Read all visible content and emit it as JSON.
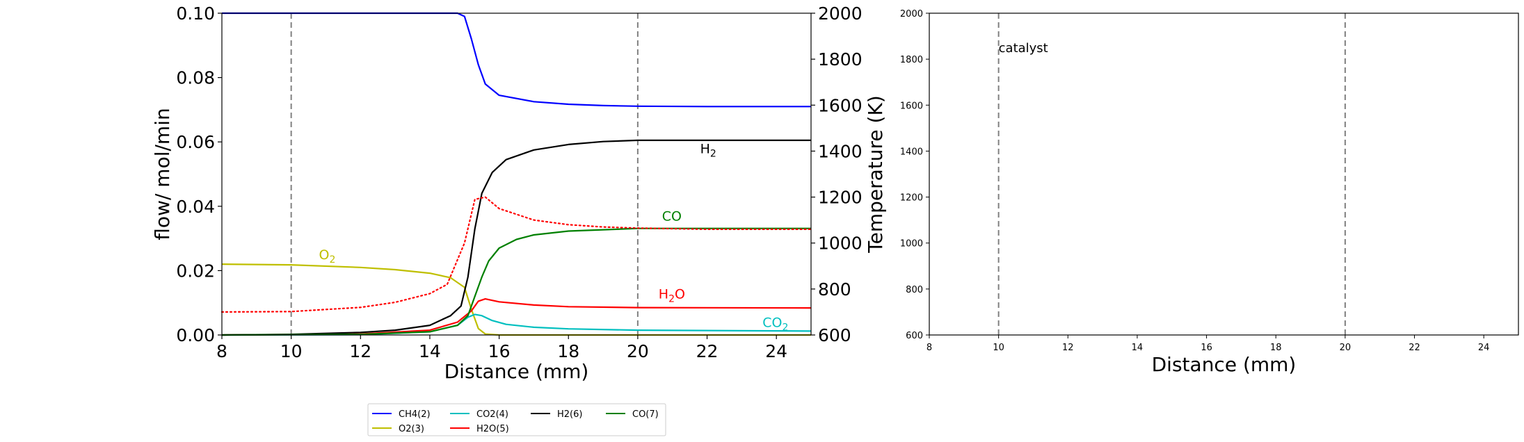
{
  "chart_data": [
    {
      "type": "line",
      "xlabel": "Distance (mm)",
      "ylabel": "flow/ mol/min",
      "y2label": "Temperature (K)",
      "xlim": [
        8,
        25
      ],
      "ylim": [
        0,
        0.1
      ],
      "y2lim": [
        600,
        2000
      ],
      "x_ticks": [
        "8",
        "10",
        "12",
        "14",
        "16",
        "18",
        "20",
        "22",
        "24"
      ],
      "y_ticks": [
        "0.00",
        "0.02",
        "0.04",
        "0.06",
        "0.08",
        "0.10"
      ],
      "y2_ticks": [
        "600",
        "800",
        "1000",
        "1200",
        "1400",
        "1600",
        "1800",
        "2000"
      ],
      "catalyst_bounds": [
        10,
        20
      ],
      "series": [
        {
          "name": "CH4(2)",
          "color": "#0000ff",
          "x": [
            8,
            10,
            12,
            14,
            14.8,
            15.0,
            15.2,
            15.4,
            15.6,
            16,
            17,
            18,
            19,
            20,
            22,
            25
          ],
          "values": [
            0.1,
            0.1,
            0.1,
            0.1,
            0.1,
            0.099,
            0.092,
            0.084,
            0.078,
            0.0745,
            0.0725,
            0.0717,
            0.0713,
            0.0711,
            0.071,
            0.071
          ]
        },
        {
          "name": "O2(3)",
          "color": "#bfbf00",
          "x": [
            8,
            10,
            12,
            13,
            14,
            14.6,
            15.0,
            15.2,
            15.4,
            15.6,
            16,
            17,
            20,
            25
          ],
          "values": [
            0.022,
            0.0218,
            0.021,
            0.0203,
            0.0192,
            0.0178,
            0.0148,
            0.008,
            0.002,
            0.0003,
            0,
            0,
            0,
            0
          ]
        },
        {
          "name": "CO2(4)",
          "color": "#00bfbf",
          "x": [
            8,
            12,
            14,
            14.8,
            15.1,
            15.3,
            15.5,
            15.8,
            16.2,
            17,
            18,
            20,
            25
          ],
          "values": [
            0,
            0.0001,
            0.001,
            0.003,
            0.0055,
            0.0064,
            0.006,
            0.0045,
            0.0033,
            0.0024,
            0.0019,
            0.0015,
            0.0012
          ]
        },
        {
          "name": "H2O(5)",
          "color": "#ff0000",
          "x": [
            8,
            12,
            14,
            14.8,
            15.2,
            15.4,
            15.6,
            16,
            17,
            18,
            20,
            25
          ],
          "values": [
            0,
            0.0003,
            0.0015,
            0.004,
            0.0075,
            0.0105,
            0.0112,
            0.0103,
            0.0093,
            0.0088,
            0.0085,
            0.0084
          ]
        },
        {
          "name": "H2(6)",
          "color": "#000000",
          "x": [
            8,
            10,
            12,
            13,
            14,
            14.6,
            14.9,
            15.1,
            15.3,
            15.5,
            15.8,
            16.2,
            17,
            18,
            19,
            20,
            22,
            25
          ],
          "values": [
            0,
            0.0002,
            0.0008,
            0.0015,
            0.003,
            0.006,
            0.009,
            0.018,
            0.033,
            0.044,
            0.0505,
            0.0545,
            0.0575,
            0.0592,
            0.0601,
            0.0605,
            0.0605,
            0.0605
          ]
        },
        {
          "name": "CO(7)",
          "color": "#008000",
          "x": [
            8,
            12,
            14,
            14.8,
            15.1,
            15.3,
            15.5,
            15.7,
            16,
            16.5,
            17,
            18,
            20,
            25
          ],
          "values": [
            0,
            0.0002,
            0.001,
            0.003,
            0.006,
            0.012,
            0.018,
            0.023,
            0.027,
            0.0297,
            0.0311,
            0.0323,
            0.0331,
            0.0331
          ]
        }
      ],
      "temperature": {
        "name": "Temperature",
        "color": "#ff0000",
        "dashed": true,
        "x": [
          8,
          10,
          12,
          13,
          14,
          14.5,
          15.0,
          15.3,
          15.6,
          16,
          17,
          18,
          19,
          20,
          22,
          25
        ],
        "values": [
          700,
          702,
          720,
          742,
          780,
          820,
          1000,
          1190,
          1200,
          1150,
          1100,
          1080,
          1070,
          1065,
          1060,
          1060
        ]
      },
      "annotations": [
        {
          "base": "O",
          "sub": "2",
          "x": 10.8,
          "y": 0.0235,
          "color": "#bfbf00"
        },
        {
          "base": "H",
          "sub": "2",
          "x": 21.8,
          "y": 0.0565,
          "color": "#000000"
        },
        {
          "base": "CO",
          "sub": "",
          "x": 20.7,
          "y": 0.0355,
          "color": "#008000"
        },
        {
          "base": "H",
          "sub": "2",
          "tail": "O",
          "x": 20.6,
          "y": 0.0113,
          "color": "#ff0000"
        },
        {
          "base": "CO",
          "sub": "2",
          "x": 23.6,
          "y": 0.0025,
          "color": "#00bfbf"
        }
      ]
    },
    {
      "type": "line",
      "xlabel": "Distance (mm)",
      "xlim": [
        8,
        25
      ],
      "ylim": [
        600,
        2000
      ],
      "x_ticks": [
        "8",
        "10",
        "12",
        "14",
        "16",
        "18",
        "20",
        "22",
        "24"
      ],
      "y_ticks": [
        "600",
        "800",
        "1000",
        "1200",
        "1400",
        "1600",
        "1800",
        "2000"
      ],
      "catalyst_bounds": [
        10,
        20
      ],
      "catalyst_label": "catalyst",
      "catalyst_label_pos": {
        "x": 10.0,
        "y": 1830
      },
      "series": []
    }
  ],
  "legend": {
    "position": "bottom-center",
    "entries": [
      {
        "label": "CH4(2)",
        "color": "#0000ff"
      },
      {
        "label": "O2(3)",
        "color": "#bfbf00"
      },
      {
        "label": "CO2(4)",
        "color": "#00bfbf"
      },
      {
        "label": "H2O(5)",
        "color": "#ff0000"
      },
      {
        "label": "H2(6)",
        "color": "#000000"
      },
      {
        "label": "CO(7)",
        "color": "#008000"
      }
    ]
  }
}
